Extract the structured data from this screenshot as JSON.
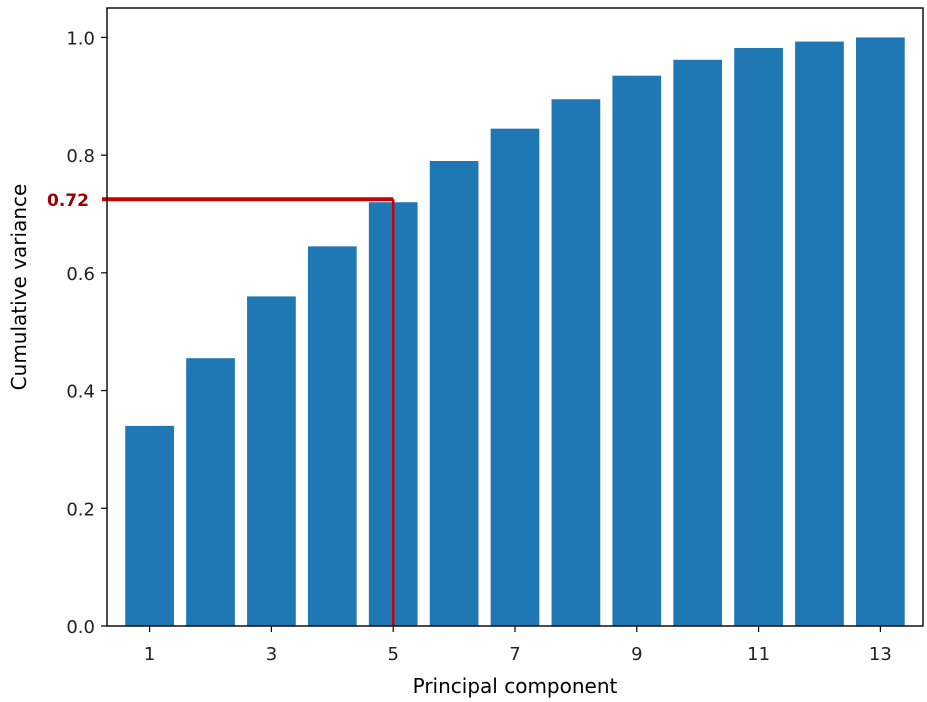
{
  "chart_data": {
    "type": "bar",
    "xlabel": "Principal component",
    "ylabel": "Cumulative variance",
    "categories": [
      1,
      2,
      3,
      4,
      5,
      6,
      7,
      8,
      9,
      10,
      11,
      12,
      13
    ],
    "values": [
      0.34,
      0.455,
      0.56,
      0.645,
      0.72,
      0.79,
      0.845,
      0.895,
      0.935,
      0.962,
      0.982,
      0.993,
      1.0
    ],
    "xticks": [
      1,
      3,
      5,
      7,
      9,
      11,
      13
    ],
    "yticks": [
      "0.0",
      "0.2",
      "0.4",
      "0.6",
      "0.8",
      "1.0"
    ],
    "xlim": [
      0.3,
      13.7
    ],
    "ylim": [
      0,
      1.05
    ],
    "bar_color": "#1f77b4",
    "annotation": {
      "label": "0.72",
      "value": 0.72,
      "x": 5,
      "color": "#cc0000"
    }
  }
}
